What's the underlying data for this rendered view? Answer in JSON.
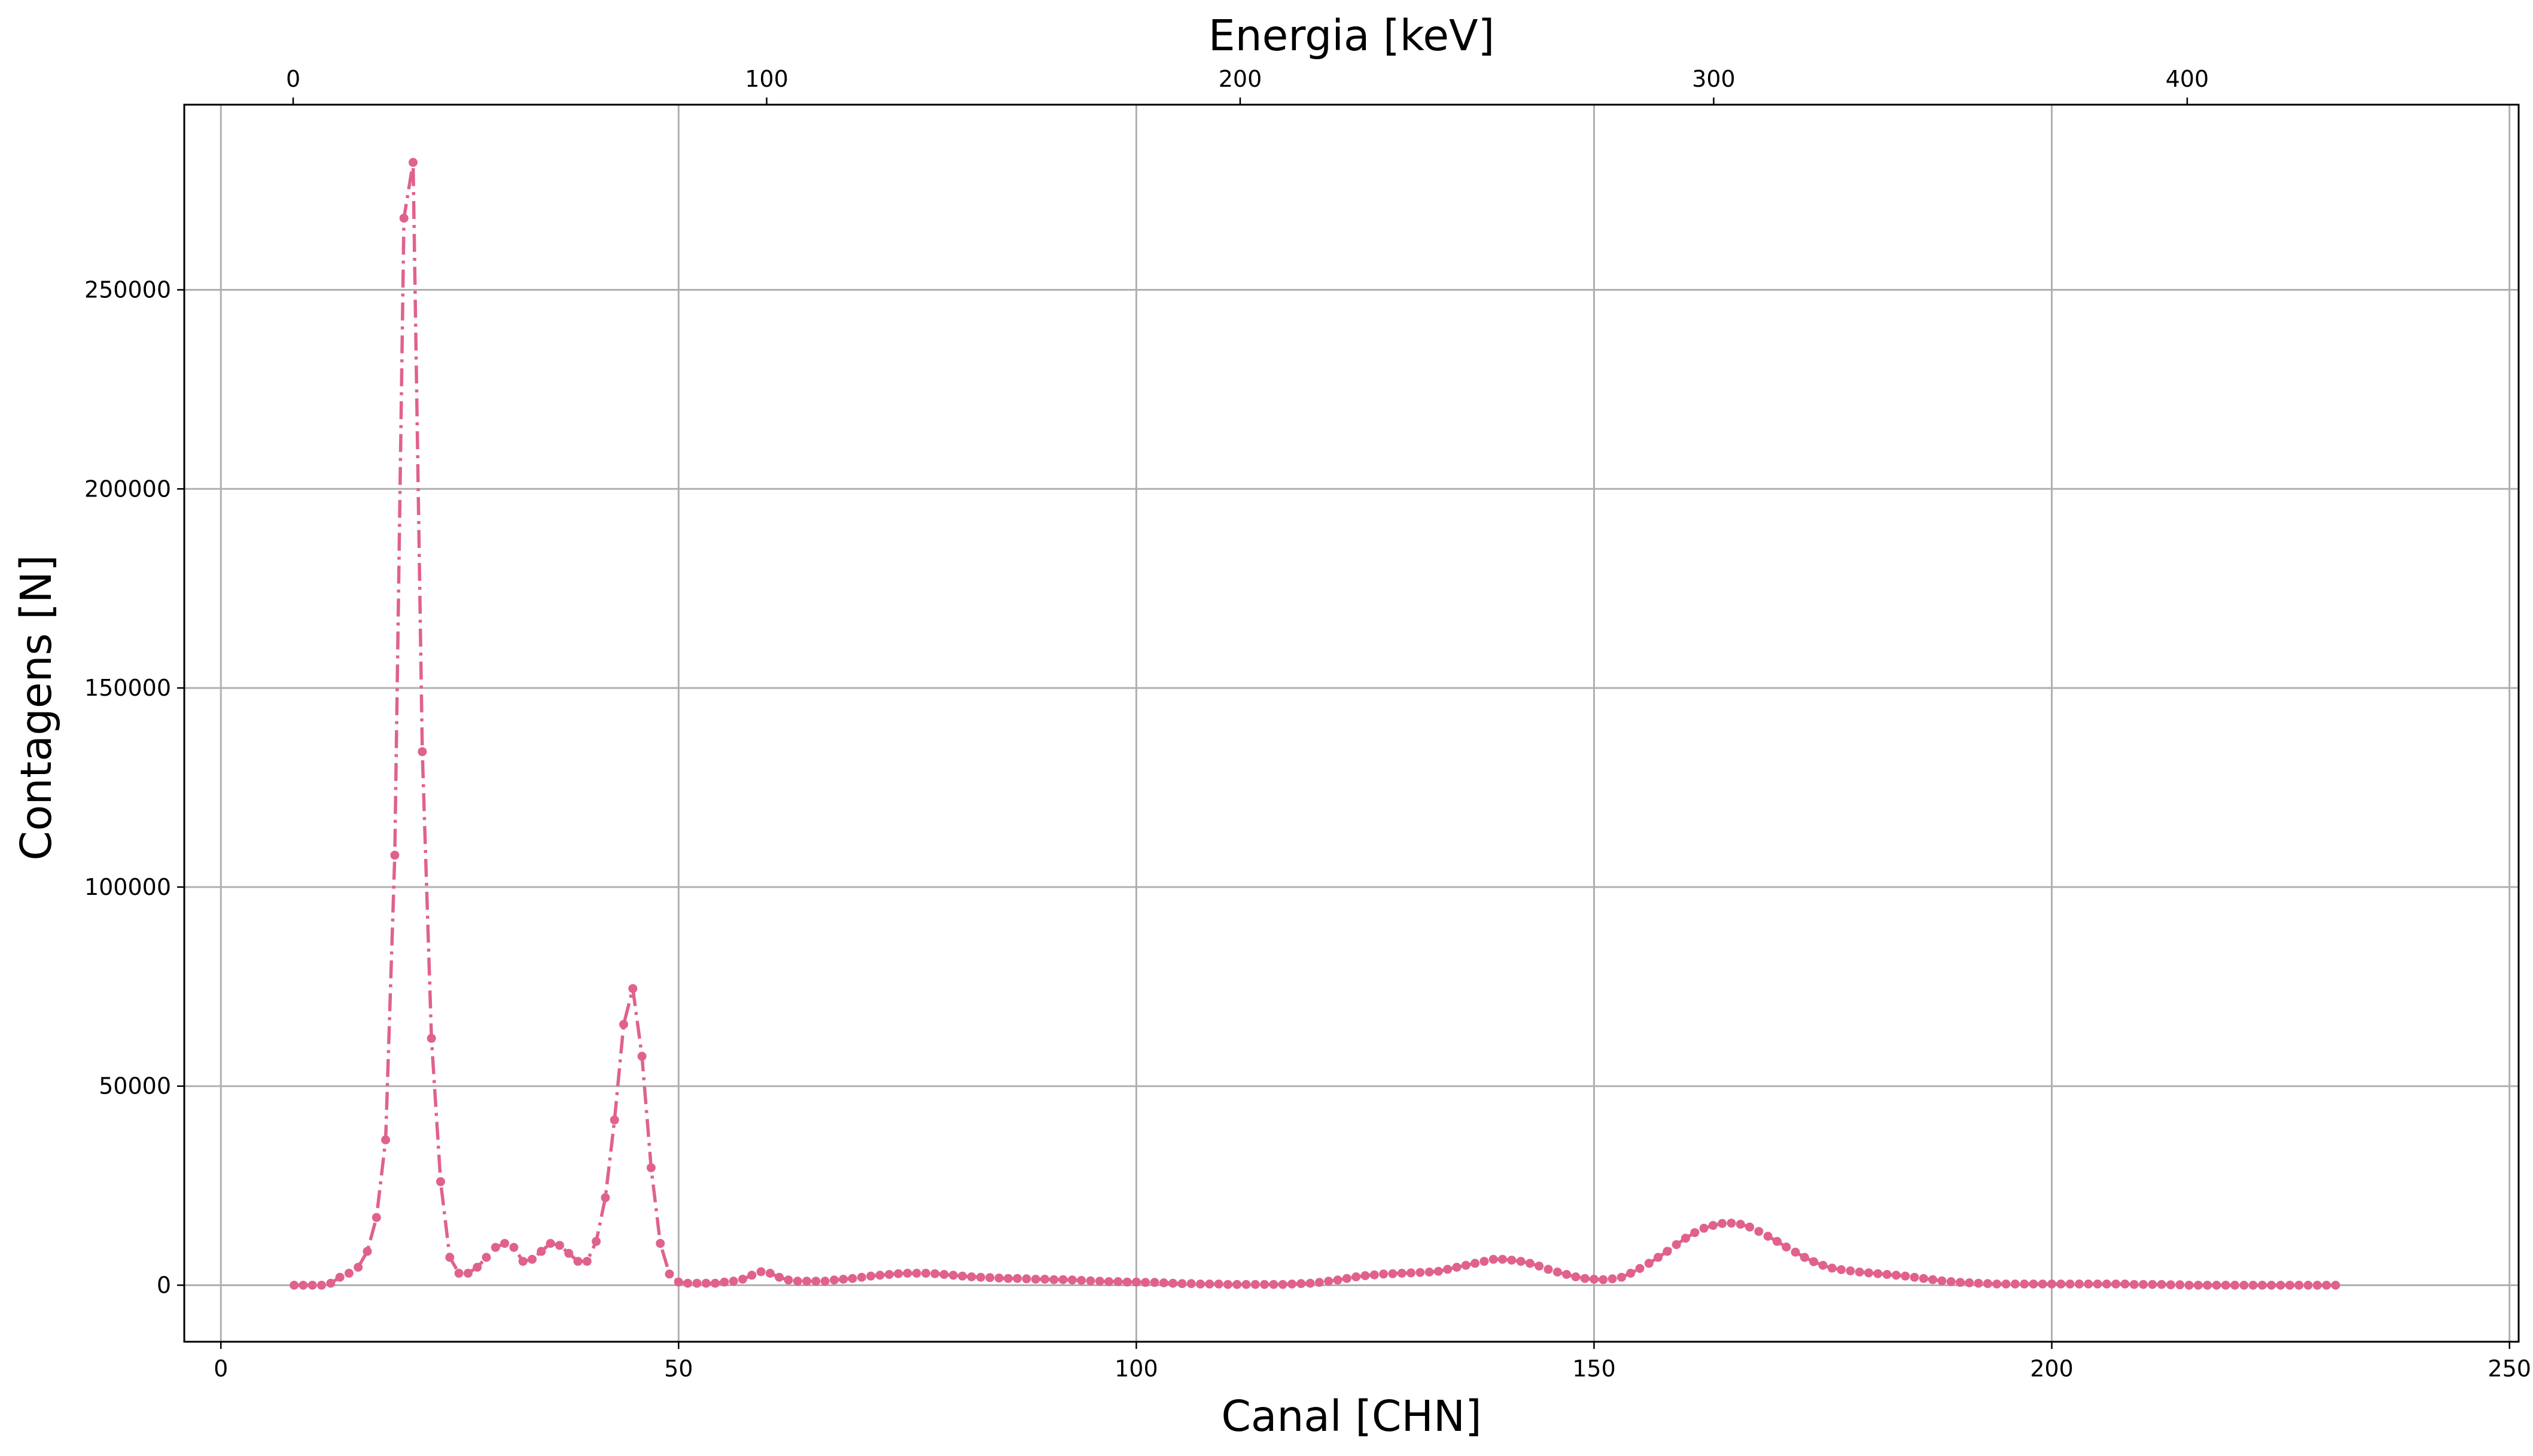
{
  "chart_data": {
    "type": "line",
    "xlabel": "Canal [CHN]",
    "ylabel": "Contagens [N]",
    "top_xlabel": "Energia [keV]",
    "xlim": [
      -4,
      251
    ],
    "ylim": [
      -14200,
      296500
    ],
    "top_xlim": [
      -23,
      470
    ],
    "x_ticks": [
      "0",
      "50",
      "100",
      "150",
      "200",
      "250"
    ],
    "x_tick_values": [
      0,
      50,
      100,
      150,
      200,
      250
    ],
    "y_ticks": [
      "0",
      "50000",
      "100000",
      "150000",
      "200000",
      "250000"
    ],
    "y_tick_values": [
      0,
      50000,
      100000,
      150000,
      200000,
      250000
    ],
    "top_x_ticks": [
      "0",
      "100",
      "200",
      "300",
      "400"
    ],
    "top_x_tick_values": [
      0,
      100,
      200,
      300,
      400
    ],
    "grid": true,
    "line_style": "dash-dot with circular markers",
    "color": "#e0628a",
    "series": [
      {
        "x_start": 8,
        "x_step": 1,
        "values": [
          0,
          0,
          0,
          0,
          500,
          2000,
          3000,
          4500,
          8500,
          17000,
          36500,
          108000,
          268000,
          282000,
          134000,
          62000,
          26000,
          7000,
          3000,
          3000,
          4500,
          7000,
          9500,
          10500,
          9500,
          6000,
          6500,
          8500,
          10500,
          10000,
          8000,
          6000,
          6000,
          11000,
          22000,
          41500,
          65500,
          74500,
          57500,
          29500,
          10500,
          2800,
          800,
          500,
          500,
          500,
          500,
          800,
          1000,
          1500,
          2500,
          3400,
          3000,
          2000,
          1300,
          1000,
          1000,
          1000,
          1000,
          1300,
          1500,
          1700,
          2000,
          2300,
          2500,
          2700,
          2900,
          3000,
          3000,
          3000,
          2900,
          2700,
          2500,
          2300,
          2100,
          2000,
          1900,
          1800,
          1700,
          1700,
          1600,
          1500,
          1500,
          1400,
          1400,
          1300,
          1200,
          1100,
          1000,
          900,
          900,
          800,
          800,
          700,
          700,
          600,
          500,
          400,
          400,
          300,
          300,
          300,
          200,
          200,
          200,
          200,
          200,
          200,
          200,
          300,
          400,
          500,
          700,
          1000,
          1300,
          1700,
          2100,
          2400,
          2600,
          2800,
          2900,
          3000,
          3100,
          3200,
          3300,
          3500,
          4000,
          4500,
          5000,
          5500,
          6000,
          6500,
          6500,
          6300,
          6000,
          5500,
          4800,
          4000,
          3300,
          2700,
          2100,
          1700,
          1500,
          1400,
          1600,
          2000,
          3000,
          4200,
          5500,
          7000,
          8500,
          10200,
          11800,
          13200,
          14300,
          15000,
          15500,
          15600,
          15300,
          14600,
          13500,
          12300,
          11000,
          9600,
          8300,
          7000,
          5900,
          5000,
          4300,
          3900,
          3600,
          3300,
          3100,
          2900,
          2700,
          2500,
          2300,
          2000,
          1700,
          1400,
          1100,
          900,
          700,
          600,
          500,
          400,
          300,
          300,
          300,
          300,
          300,
          300,
          300,
          300,
          300,
          300,
          300,
          300,
          300,
          300,
          300,
          200,
          200,
          200,
          200,
          100,
          100,
          0,
          0,
          0,
          0,
          0,
          0,
          0,
          0,
          0,
          0,
          0,
          0,
          0,
          0,
          0,
          0,
          0
        ]
      }
    ]
  }
}
